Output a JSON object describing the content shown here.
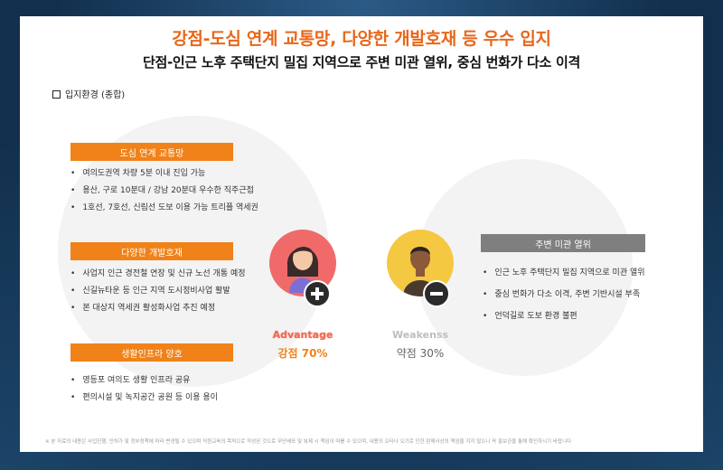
{
  "header": {
    "title": "강점-도심 연계 교통망, 다양한 개발호재 등 우수 입지",
    "subtitle": "단점-인근 노후 주택단지 밀집 지역으로 주변 미관 열위, 중심 번화가 다소 이격"
  },
  "section_label": "입지환경 (종합)",
  "strengths": [
    {
      "heading": "도심 연계 교통망",
      "items": [
        "여의도권역 차량 5분 이내 진입 가능",
        "용산, 구로 10분대 / 강남 20분대 우수한 직주근접",
        "1호선, 7호선, 신림선 도보 이용 가능 트리플 역세권"
      ]
    },
    {
      "heading": "다양한 개발호재",
      "items": [
        "사업지 인근 경전철 연장 및 신규 노선 개통 예정",
        "신길뉴타운 등 인근 지역 도시정비사업 활발",
        "본 대상지 역세권 활성화사업 추진 예정"
      ]
    },
    {
      "heading": "생활인프라 양호",
      "items": [
        "영등포 여의도 생활 인프라 공유",
        "편의시설 및 녹지공간 공원 등 이용 용이"
      ]
    }
  ],
  "advantage": {
    "label": "Advantage",
    "percent_text": "강점 70%",
    "icon": "woman-plus-icon",
    "color": "#f06a53"
  },
  "weakness": {
    "label": "Weakenss",
    "percent_text": "약점 30%",
    "icon": "man-minus-icon",
    "color": "#f5c842"
  },
  "weaknesses": {
    "heading": "주변 미관 열위",
    "items": [
      "인근 노후 주택단지 밀집 지역으로 미관 열위",
      "중심 번화가 다소 이격, 주변 기반시설 부족",
      "언덕길로 도보 환경 불편"
    ]
  },
  "footnote": "※ 본 자료의 내용은 사업진행, 인허가 및 정부정책에 따라 변경될 수 있으며 직원교육의 목적으로 작성된 것으로 무단배포 및 복제 시 책임이 따를 수 있으며, 내용의 오타나 오기로 인한 판매사상의 책임을 지지 않으니 꼭 홍보관을 통해 확인하시기 바랍니다",
  "colors": {
    "accent": "#f08219",
    "title": "#e8671a",
    "neutral": "#7f7f7f"
  }
}
